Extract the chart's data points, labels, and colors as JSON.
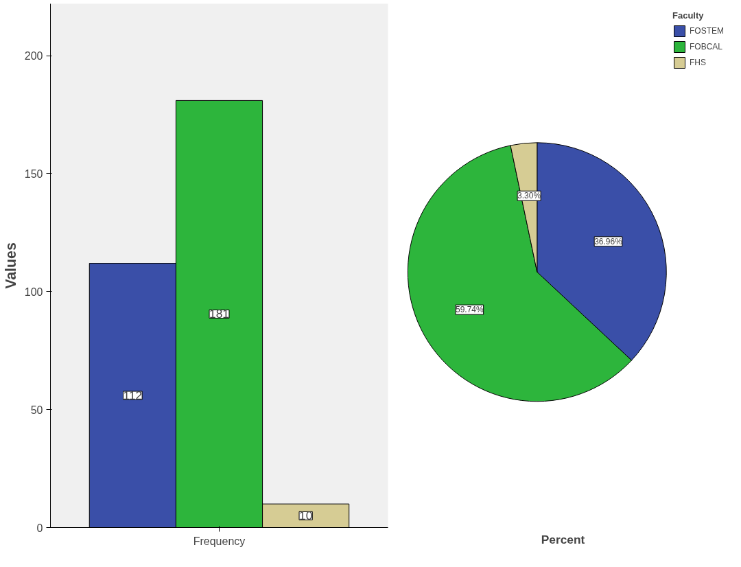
{
  "chart_data": [
    {
      "type": "bar",
      "ylabel": "Values",
      "categories": [
        "Frequency"
      ],
      "ylim": [
        0,
        222
      ],
      "yticks": [
        0,
        50,
        100,
        150,
        200
      ],
      "grid": false,
      "data_labels": true,
      "series": [
        {
          "color": "#3a4fa8",
          "values": [
            112
          ]
        },
        {
          "color": "#2db53c",
          "values": [
            181
          ]
        },
        {
          "color": "#d6cc94",
          "values": [
            10
          ]
        }
      ]
    },
    {
      "type": "pie",
      "xlabel": "Percent",
      "legend_title": "Faculty",
      "legend": "top right",
      "categories": [
        "FOSTEM",
        "FOBCAL",
        "FHS"
      ],
      "values": [
        36.96,
        59.74,
        3.3
      ],
      "colors": [
        "#3a4fa8",
        "#2db53c",
        "#d6cc94"
      ],
      "value_labels": [
        "36.96%",
        "59.74%",
        "3.30%"
      ]
    }
  ]
}
